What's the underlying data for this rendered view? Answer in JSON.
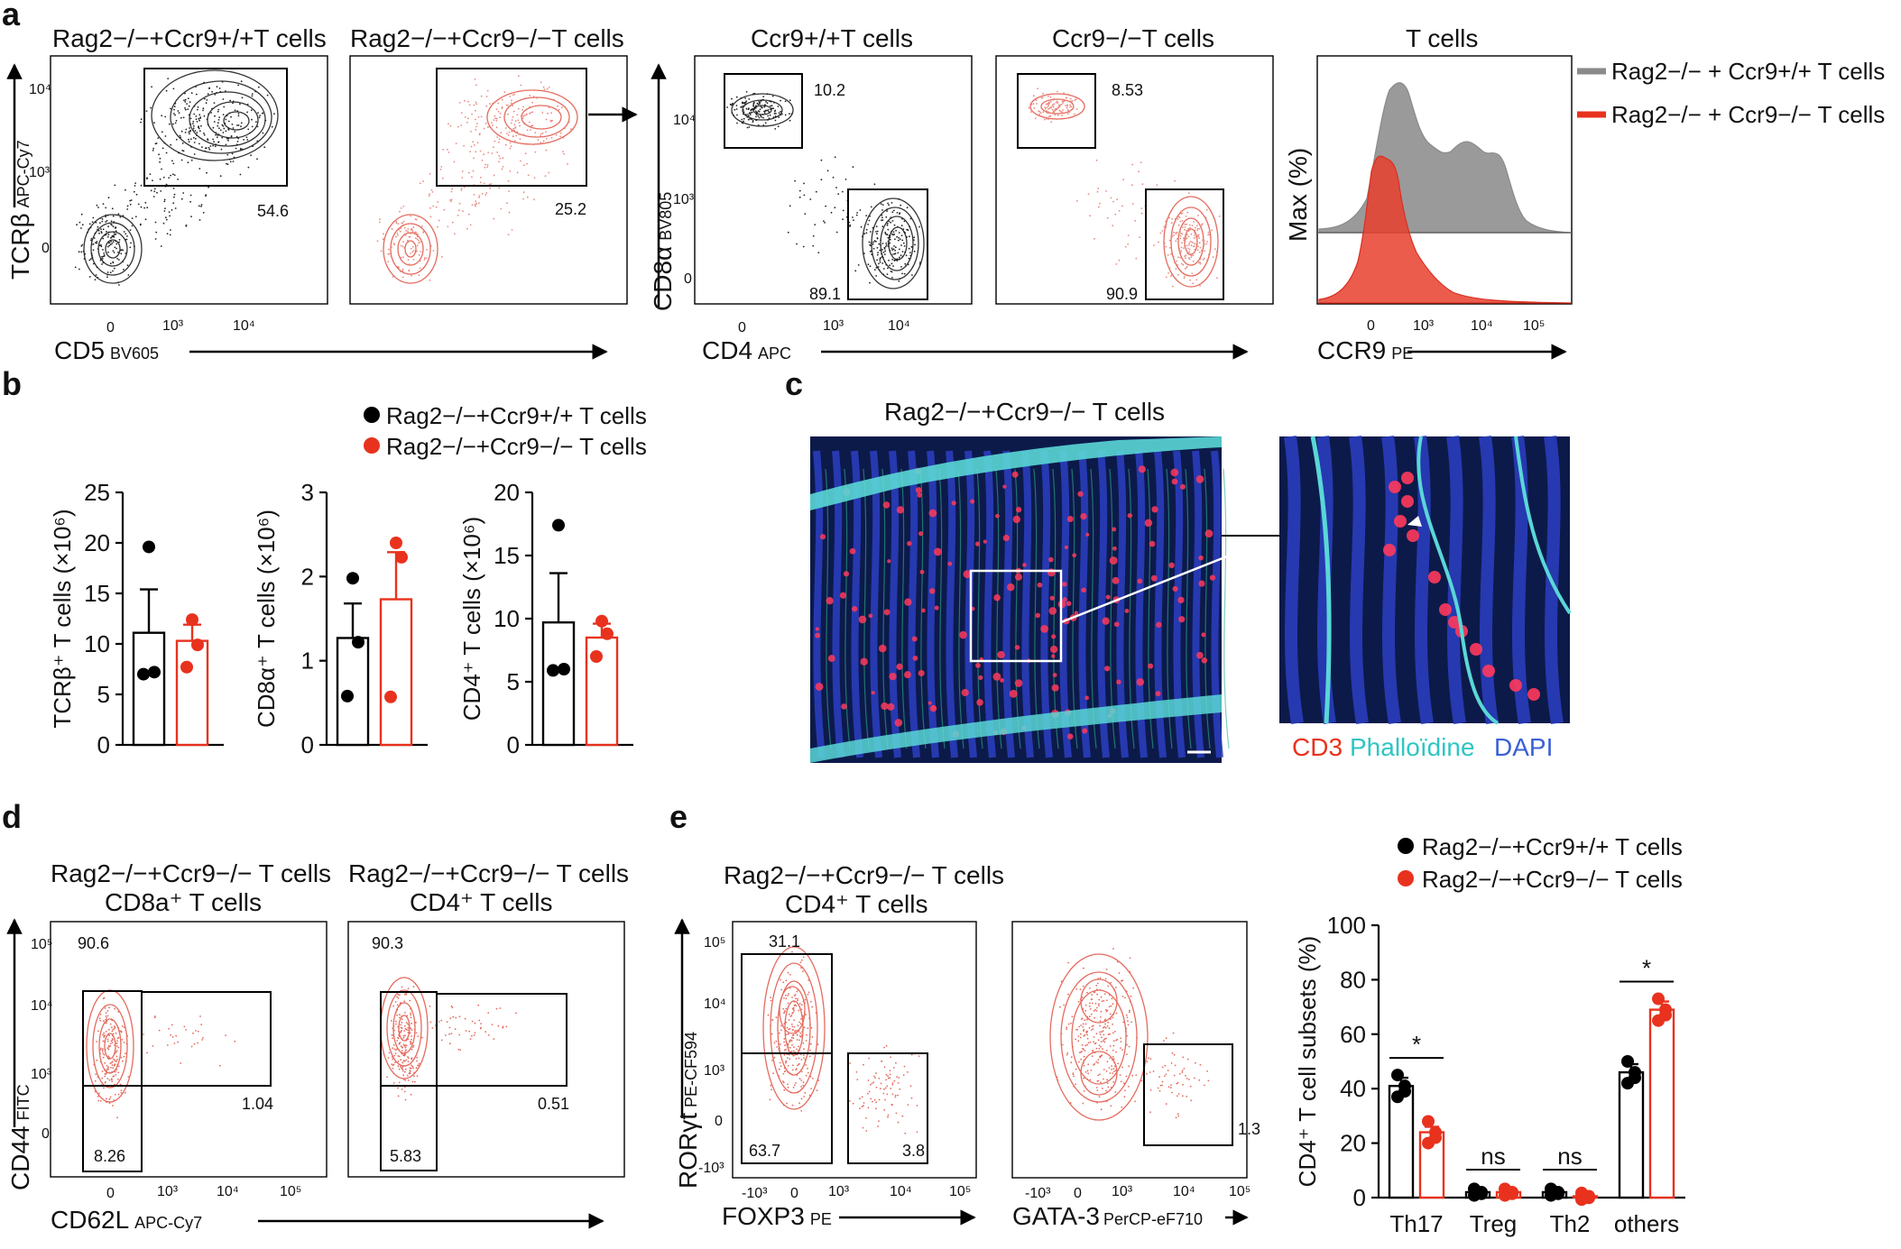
{
  "panels": {
    "a": {
      "label": "a",
      "titles": [
        "Rag2−/−+Ccr9+/+T cells",
        "Rag2−/−+Ccr9−/−T cells",
        "Ccr9+/+T cells",
        "Ccr9−/−T cells",
        "T cells"
      ],
      "gate_values": [
        "54.6",
        "25.2",
        "10.2",
        "89.1",
        "8.53",
        "90.9"
      ],
      "axes": {
        "y1": "TCRβ",
        "y1_sub": "APC-Cy7",
        "x1": "CD5",
        "x1_sub": "BV605",
        "y2": "CD8α",
        "y2_sub": "BV805",
        "x2": "CD4",
        "x2_sub": "APC",
        "y3": "Max (%)",
        "x3": "CCR9",
        "x3_sub": "PE"
      },
      "ticks_tcr": [
        "10⁴",
        "10³",
        "0"
      ],
      "ticks_cd5": [
        "0",
        "10³",
        "10⁴"
      ],
      "ticks_cd8": [
        "10⁴",
        "10³",
        "0"
      ],
      "ticks_cd4": [
        "0",
        "10³",
        "10⁴"
      ],
      "ticks_ccr9": [
        "0",
        "10³",
        "10⁴",
        "10⁵"
      ],
      "legend": [
        "Rag2−/− + Ccr9+/+ T cells",
        "Rag2−/− + Ccr9−/− T cells"
      ]
    },
    "b": {
      "label": "b",
      "legend": [
        "Rag2−/−+Ccr9+/+ T cells",
        "Rag2−/−+Ccr9−/− T cells"
      ],
      "ylabels": [
        "TCRβ⁺ T cells (×10⁶)",
        "CD8α⁺ T cells (×10⁶)",
        "CD4⁺ T cells (×10⁶)"
      ]
    },
    "c": {
      "label": "c",
      "title": "Rag2−/−+Ccr9−/− T cells",
      "stain_cd3": "CD3",
      "stain_phalloidin": "Phalloïdine",
      "stain_dapi": "DAPI"
    },
    "d": {
      "label": "d",
      "titles": [
        "Rag2−/−+Ccr9−/− T cells",
        "CD8a⁺ T cells",
        "Rag2−/−+Ccr9−/− T cells",
        "CD4⁺ T cells"
      ],
      "gate_values": [
        "90.6",
        "1.04",
        "8.26",
        "90.3",
        "0.51",
        "5.83"
      ],
      "y": "CD44",
      "y_sub": "FITC",
      "x": "CD62L",
      "x_sub": "APC-Cy7",
      "yticks": [
        "10⁵",
        "10⁴",
        "10³",
        "0"
      ],
      "xticks": [
        "0",
        "10³",
        "10⁴",
        "10⁵"
      ]
    },
    "e": {
      "label": "e",
      "titles": [
        "Rag2−/−+Ccr9−/− T cells",
        "CD4⁺ T cells"
      ],
      "gate_values": [
        "31.1",
        "63.7",
        "3.8",
        "1.3"
      ],
      "y": "RORγt",
      "y_sub": "PE-CF594",
      "x1": "FOXP3",
      "x1_sub": "PE",
      "x2": "GATA-3",
      "x2_sub": "PerCP-eF710",
      "yticks": [
        "10⁵",
        "10⁴",
        "10³",
        "0",
        "-10³"
      ],
      "xticks": [
        "-10³",
        "0",
        "10³",
        "10⁴",
        "10⁵"
      ],
      "legend": [
        "Rag2−/−+Ccr9+/+ T cells",
        "Rag2−/−+Ccr9−/− T cells"
      ],
      "ylabel": "CD4⁺ T cell subsets (%)",
      "significance": [
        "*",
        "ns",
        "ns",
        "*"
      ]
    }
  },
  "colors": {
    "wt": "#000000",
    "ko": "#e8321e",
    "wt_hist": "#9a9a9a",
    "ko_hist": "#e8402e"
  },
  "chart_data": [
    {
      "type": "bar",
      "title": "",
      "categories": [
        "Rag2−/−+Ccr9+/+ T cells",
        "Rag2−/−+Ccr9−/− T cells"
      ],
      "ylabel": "TCRβ⁺ T cells (×10⁶)",
      "ylim": [
        0,
        25
      ],
      "yticks": [
        0,
        5,
        10,
        15,
        20,
        25
      ],
      "values": [
        11.1,
        10.3
      ],
      "errors": [
        4.3,
        1.6
      ],
      "points": [
        [
          19.6,
          7.2,
          7.0
        ],
        [
          12.4,
          9.9,
          7.7
        ]
      ]
    },
    {
      "type": "bar",
      "title": "",
      "categories": [
        "Rag2−/−+Ccr9+/+ T cells",
        "Rag2−/−+Ccr9−/− T cells"
      ],
      "ylabel": "CD8α⁺ T cells (×10⁶)",
      "ylim": [
        0,
        3
      ],
      "yticks": [
        0,
        1,
        2,
        3
      ],
      "values": [
        1.27,
        1.73
      ],
      "errors": [
        0.41,
        0.56
      ],
      "points": [
        [
          1.98,
          1.22,
          0.58
        ],
        [
          2.4,
          2.23,
          0.57
        ]
      ]
    },
    {
      "type": "bar",
      "title": "",
      "categories": [
        "Rag2−/−+Ccr9+/+ T cells",
        "Rag2−/−+Ccr9−/− T cells"
      ],
      "ylabel": "CD4⁺ T cells (×10⁶)",
      "ylim": [
        0,
        20
      ],
      "yticks": [
        0,
        5,
        10,
        15,
        20
      ],
      "values": [
        9.7,
        8.5
      ],
      "errors": [
        3.9,
        1.1
      ],
      "points": [
        [
          17.4,
          6.0,
          5.9
        ],
        [
          9.8,
          8.8,
          7.0
        ]
      ]
    },
    {
      "type": "bar",
      "title": "",
      "categories": [
        "Th17",
        "Treg",
        "Th2",
        "others"
      ],
      "series": [
        {
          "name": "Rag2−/−+Ccr9+/+ T cells",
          "values": [
            41,
            2,
            2,
            46
          ],
          "errors": [
            3,
            1,
            1,
            3
          ]
        },
        {
          "name": "Rag2−/−+Ccr9−/− T cells",
          "values": [
            24,
            2,
            0.5,
            69
          ],
          "errors": [
            2,
            1,
            0,
            3
          ]
        }
      ],
      "ylabel": "CD4⁺ T cell subsets (%)",
      "ylim": [
        0,
        100
      ],
      "yticks": [
        0,
        20,
        40,
        60,
        80,
        100
      ]
    }
  ]
}
